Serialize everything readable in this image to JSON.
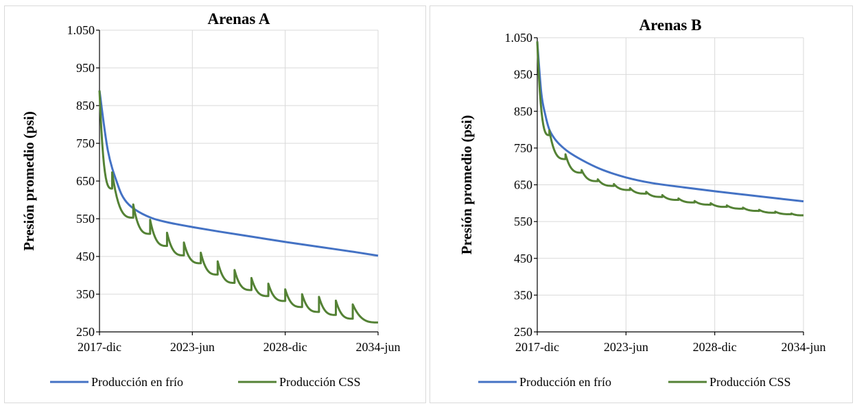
{
  "chart_data": [
    {
      "type": "line",
      "title": "Arenas A",
      "xlabel": "",
      "ylabel": "Presión promedio (psi)",
      "x_ticks": [
        "2017-dic",
        "2023-jun",
        "2028-dic",
        "2034-jun"
      ],
      "x_range": [
        "2017-12",
        "2034-06"
      ],
      "y_ticks": [
        "250",
        "350",
        "450",
        "550",
        "650",
        "750",
        "850",
        "950",
        "1.050"
      ],
      "ylim": [
        250,
        1050
      ],
      "grid": true,
      "legend_position": "bottom",
      "series": [
        {
          "name": "Producción en frío",
          "color": "#4472C4",
          "x": [
            "2017-12",
            "2018-06",
            "2019-01",
            "2019-06",
            "2020-01",
            "2021-01",
            "2022-01",
            "2023-06",
            "2025-01",
            "2027-01",
            "2029-01",
            "2031-01",
            "2033-01",
            "2034-06"
          ],
          "y": [
            890,
            730,
            640,
            600,
            575,
            552,
            540,
            528,
            516,
            502,
            488,
            475,
            462,
            452
          ]
        },
        {
          "name": "Producción CSS",
          "color": "#548235",
          "cycles": true,
          "start": [
            "2017-12",
            890
          ],
          "cycle_points": [
            {
              "t": "2018-09",
              "base": 630,
              "peak": 673
            },
            {
              "t": "2019-12",
              "base": 553,
              "peak": 588
            },
            {
              "t": "2020-12",
              "base": 510,
              "peak": 547
            },
            {
              "t": "2021-12",
              "base": 478,
              "peak": 513
            },
            {
              "t": "2022-12",
              "base": 453,
              "peak": 487
            },
            {
              "t": "2023-12",
              "base": 432,
              "peak": 460
            },
            {
              "t": "2024-12",
              "base": 402,
              "peak": 437
            },
            {
              "t": "2025-12",
              "base": 380,
              "peak": 414
            },
            {
              "t": "2026-12",
              "base": 361,
              "peak": 393
            },
            {
              "t": "2027-12",
              "base": 345,
              "peak": 378
            },
            {
              "t": "2028-12",
              "base": 332,
              "peak": 363
            },
            {
              "t": "2029-12",
              "base": 316,
              "peak": 350
            },
            {
              "t": "2030-12",
              "base": 303,
              "peak": 343
            },
            {
              "t": "2031-12",
              "base": 295,
              "peak": 333
            },
            {
              "t": "2032-12",
              "base": 285,
              "peak": 323
            }
          ],
          "end": [
            "2034-06",
            275
          ]
        }
      ]
    },
    {
      "type": "line",
      "title": "Arenas B",
      "xlabel": "",
      "ylabel": "Presión promedio (psi)",
      "x_ticks": [
        "2017-dic",
        "2023-jun",
        "2028-dic",
        "2034-jun"
      ],
      "x_range": [
        "2017-12",
        "2034-06"
      ],
      "y_ticks": [
        "250",
        "350",
        "450",
        "550",
        "650",
        "750",
        "850",
        "950",
        "1.050"
      ],
      "ylim": [
        250,
        1050
      ],
      "grid": true,
      "legend_position": "bottom",
      "series": [
        {
          "name": "Producción en frío",
          "color": "#4472C4",
          "x": [
            "2017-12",
            "2018-03",
            "2018-06",
            "2018-09",
            "2019-01",
            "2019-06",
            "2020-01",
            "2021-01",
            "2022-01",
            "2023-06",
            "2025-01",
            "2027-01",
            "2029-01",
            "2031-01",
            "2033-01",
            "2034-06"
          ],
          "y": [
            1040,
            900,
            840,
            800,
            775,
            755,
            735,
            710,
            690,
            670,
            655,
            643,
            632,
            622,
            612,
            605
          ]
        },
        {
          "name": "Producción CSS",
          "color": "#548235",
          "cycles": true,
          "start": [
            "2017-12",
            1040
          ],
          "cycle_points": [
            {
              "t": "2018-09",
              "base": 785,
              "peak": 798
            },
            {
              "t": "2019-09",
              "base": 720,
              "peak": 733
            },
            {
              "t": "2020-09",
              "base": 683,
              "peak": 690
            },
            {
              "t": "2021-09",
              "base": 660,
              "peak": 665
            },
            {
              "t": "2022-09",
              "base": 647,
              "peak": 652
            },
            {
              "t": "2023-09",
              "base": 636,
              "peak": 641
            },
            {
              "t": "2024-09",
              "base": 626,
              "peak": 631
            },
            {
              "t": "2025-09",
              "base": 617,
              "peak": 622
            },
            {
              "t": "2026-09",
              "base": 609,
              "peak": 613
            },
            {
              "t": "2027-09",
              "base": 602,
              "peak": 606
            },
            {
              "t": "2028-09",
              "base": 596,
              "peak": 600
            },
            {
              "t": "2029-09",
              "base": 590,
              "peak": 594
            },
            {
              "t": "2030-09",
              "base": 585,
              "peak": 588
            },
            {
              "t": "2031-09",
              "base": 579,
              "peak": 582
            },
            {
              "t": "2032-09",
              "base": 574,
              "peak": 577
            },
            {
              "t": "2033-09",
              "base": 570,
              "peak": 572
            }
          ],
          "end": [
            "2034-06",
            567
          ]
        }
      ]
    }
  ]
}
